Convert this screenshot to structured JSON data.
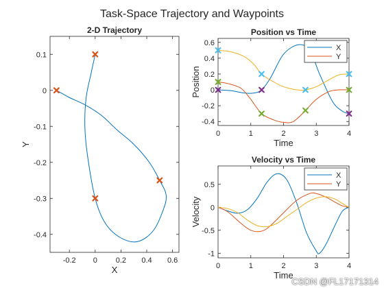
{
  "figure_title": "Task-Space Trajectory and Waypoints",
  "watermark": "CSDN @FL17171314",
  "colors": {
    "blue": "#0072BD",
    "orange": "#D95319",
    "yellow": "#EDB120",
    "purple": "#7E2F8E",
    "green": "#77AC30",
    "cyan": "#4DBEEE",
    "axis": "#262626"
  },
  "chart_data": [
    {
      "type": "line",
      "title": "2-D Trajectory",
      "xlabel": "X",
      "ylabel": "Y",
      "xlim": [
        -0.35,
        0.65
      ],
      "ylim": [
        -0.45,
        0.15
      ],
      "xticks": [
        -0.2,
        0,
        0.2,
        0.4,
        0.6
      ],
      "xticklabels": [
        "-0.2",
        "0",
        "0.2",
        "0.4",
        "0.6"
      ],
      "yticks": [
        0.1,
        0,
        -0.1,
        -0.2,
        -0.3,
        -0.4
      ],
      "yticklabels": [
        "0.1",
        "0",
        "-0.1",
        "-0.2",
        "-0.3",
        "-0.4"
      ],
      "grid": false,
      "series": [
        {
          "color": "#0072BD",
          "curve": true,
          "x": [
            0,
            -0.03,
            -0.07,
            -0.08,
            -0.06,
            0,
            0.08,
            0.2,
            0.33,
            0.45,
            0.53,
            0.55,
            0.5,
            0.42,
            0.3,
            0.17,
            0.05,
            -0.08,
            -0.2,
            -0.3
          ],
          "y": [
            0.1,
            0.05,
            -0.02,
            -0.1,
            -0.18,
            -0.3,
            -0.37,
            -0.41,
            -0.42,
            -0.39,
            -0.33,
            -0.29,
            -0.25,
            -0.2,
            -0.15,
            -0.11,
            -0.07,
            -0.04,
            -0.02,
            0
          ]
        }
      ],
      "markers": [
        {
          "x": 0,
          "y": 0.1,
          "color": "#D95319"
        },
        {
          "x": -0.3,
          "y": 0,
          "color": "#D95319"
        },
        {
          "x": 0,
          "y": -0.3,
          "color": "#D95319"
        },
        {
          "x": 0.5,
          "y": -0.25,
          "color": "#D95319"
        }
      ]
    },
    {
      "type": "line",
      "title": "Position vs Time",
      "xlabel": "Time",
      "ylabel": "Position",
      "xlim": [
        0,
        4
      ],
      "ylim": [
        -0.45,
        0.65
      ],
      "xticks": [
        0,
        1,
        2,
        3,
        4
      ],
      "xticklabels": [
        "0",
        "1",
        "2",
        "3",
        "4"
      ],
      "yticks": [
        0.6,
        0.4,
        0.2,
        0,
        -0.2,
        -0.4
      ],
      "yticklabels": [
        "0.6",
        "0.4",
        "0.2",
        "0",
        "-0.2",
        "-0.4"
      ],
      "grid": false,
      "legend": {
        "location": "top-right",
        "entries": [
          "X",
          "Y"
        ],
        "colors": [
          "#0072BD",
          "#D95319"
        ]
      },
      "series": [
        {
          "name": "X",
          "color": "#0072BD",
          "curve": true,
          "x": [
            0,
            0.4,
            0.8,
            1.1,
            1.33,
            1.6,
            2.0,
            2.45,
            2.8,
            3.1,
            3.5,
            3.8,
            4.0
          ],
          "y": [
            0,
            -0.01,
            -0.04,
            -0.04,
            0,
            0.15,
            0.45,
            0.57,
            0.5,
            0.2,
            -0.15,
            -0.27,
            -0.3
          ]
        },
        {
          "name": "Y",
          "color": "#D95319",
          "curve": true,
          "x": [
            0,
            0.3,
            0.7,
            1.0,
            1.33,
            1.7,
            2.0,
            2.3,
            2.67,
            3.0,
            3.4,
            3.7,
            4.0
          ],
          "y": [
            0.1,
            0.08,
            0.02,
            -0.12,
            -0.3,
            -0.38,
            -0.41,
            -0.4,
            -0.26,
            -0.12,
            -0.02,
            0,
            0
          ]
        },
        {
          "color": "#EDB120",
          "curve": true,
          "x": [
            0,
            0.4,
            0.8,
            1.1,
            1.33,
            1.7,
            2.0,
            2.4,
            2.67,
            3.0,
            3.4,
            3.7,
            4.0
          ],
          "y": [
            0.5,
            0.48,
            0.42,
            0.32,
            0.2,
            0.1,
            0.04,
            0,
            0,
            0.04,
            0.13,
            0.19,
            0.2
          ]
        }
      ],
      "markers": [
        {
          "x": 0,
          "y": 0.5,
          "color": "#4DBEEE"
        },
        {
          "x": 1.33,
          "y": 0.2,
          "color": "#4DBEEE"
        },
        {
          "x": 2.67,
          "y": 0,
          "color": "#4DBEEE"
        },
        {
          "x": 4,
          "y": 0.2,
          "color": "#4DBEEE"
        },
        {
          "x": 0,
          "y": 0.1,
          "color": "#77AC30"
        },
        {
          "x": 1.33,
          "y": -0.3,
          "color": "#77AC30"
        },
        {
          "x": 2.67,
          "y": -0.26,
          "color": "#77AC30"
        },
        {
          "x": 4,
          "y": 0,
          "color": "#77AC30"
        },
        {
          "x": 0,
          "y": 0,
          "color": "#7E2F8E"
        },
        {
          "x": 1.33,
          "y": 0,
          "color": "#7E2F8E"
        },
        {
          "x": 4,
          "y": -0.3,
          "color": "#7E2F8E"
        }
      ]
    },
    {
      "type": "line",
      "title": "Velocity vs Time",
      "xlabel": "Time",
      "ylabel": "Velocity",
      "xlim": [
        0,
        4
      ],
      "ylim": [
        -1.1,
        0.9
      ],
      "xticks": [
        0,
        1,
        2,
        3,
        4
      ],
      "xticklabels": [
        "0",
        "1",
        "2",
        "3",
        "4"
      ],
      "yticks": [
        0.5,
        0,
        -0.5,
        -1
      ],
      "yticklabels": [
        "0.5",
        "0",
        "-0.5",
        "-1"
      ],
      "grid": false,
      "legend": {
        "location": "top-right",
        "entries": [
          "X",
          "Y"
        ],
        "colors": [
          "#0072BD",
          "#D95319"
        ]
      },
      "series": [
        {
          "name": "X",
          "color": "#0072BD",
          "curve": true,
          "x": [
            0,
            0.3,
            0.6,
            0.9,
            1.2,
            1.5,
            1.8,
            2.1,
            2.4,
            2.7,
            3.0,
            3.1,
            3.3,
            3.6,
            3.8,
            4.0
          ],
          "y": [
            0,
            -0.08,
            -0.13,
            -0.05,
            0.2,
            0.55,
            0.73,
            0.6,
            0.1,
            -0.55,
            -0.95,
            -1.0,
            -0.8,
            -0.35,
            -0.08,
            0
          ]
        },
        {
          "name": "Y",
          "color": "#D95319",
          "curve": true,
          "x": [
            0,
            0.3,
            0.7,
            1.0,
            1.33,
            1.6,
            2.0,
            2.4,
            2.8,
            3.0,
            3.3,
            3.6,
            3.8,
            4.0
          ],
          "y": [
            0,
            -0.1,
            -0.35,
            -0.5,
            -0.52,
            -0.4,
            -0.12,
            0.15,
            0.3,
            0.3,
            0.22,
            0.1,
            0.03,
            0
          ]
        },
        {
          "color": "#EDB120",
          "curve": true,
          "x": [
            0,
            0.3,
            0.6,
            0.9,
            1.2,
            1.5,
            1.8,
            2.1,
            2.4,
            2.7,
            3.0,
            3.3,
            3.6,
            3.8,
            4.0
          ],
          "y": [
            0,
            -0.03,
            -0.12,
            -0.28,
            -0.4,
            -0.42,
            -0.35,
            -0.2,
            -0.05,
            0.1,
            0.2,
            0.23,
            0.17,
            0.08,
            0
          ]
        }
      ]
    }
  ]
}
